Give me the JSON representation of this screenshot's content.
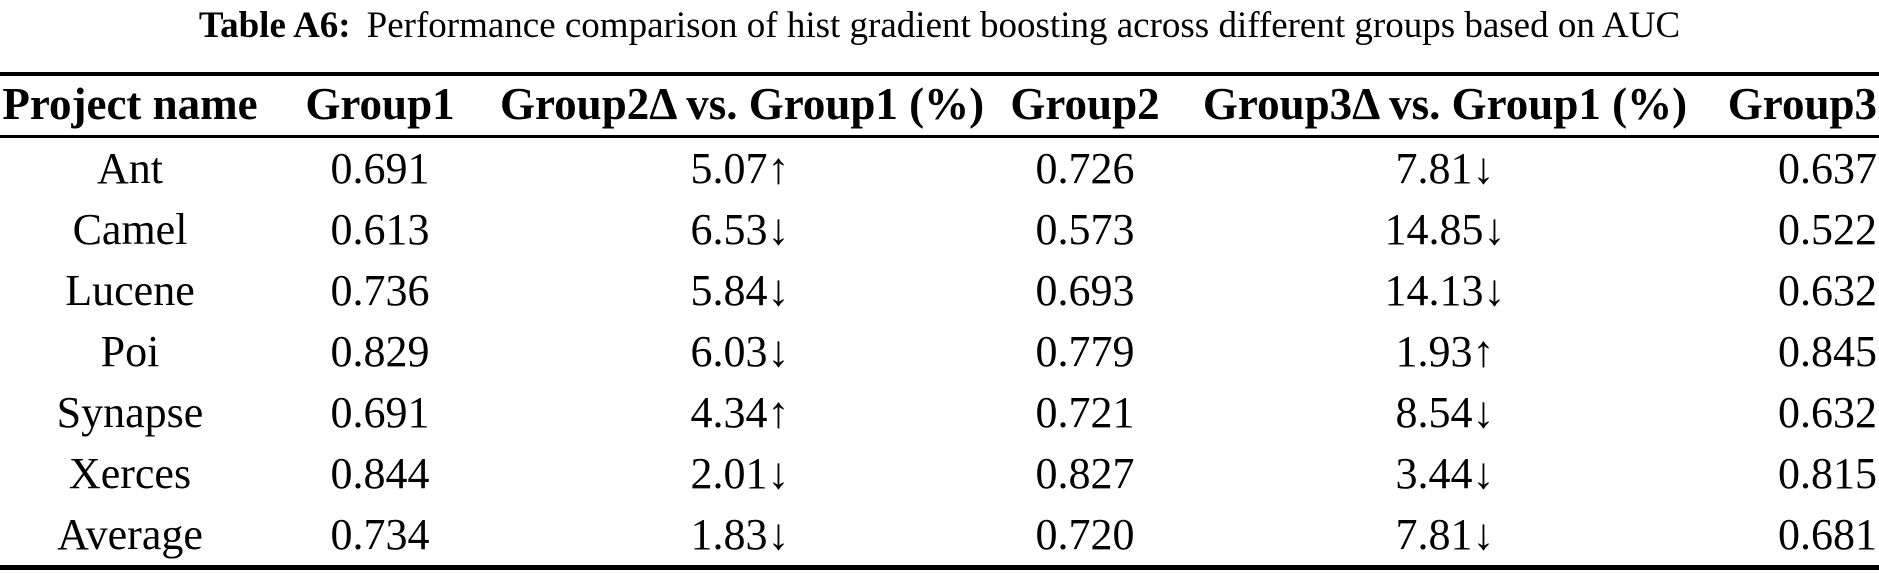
{
  "caption": {
    "label": "Table A6:",
    "text": "Performance comparison of hist gradient boosting across different groups based on AUC"
  },
  "table": {
    "columns": [
      "Project name",
      "Group1",
      "Group2Δ vs. Group1 (%)",
      "Group2",
      "Group3Δ vs. Group1 (%)",
      "Group3"
    ],
    "column_keys": [
      "project-name",
      "group1-auc",
      "group2-delta-vs-group1-pct",
      "group2-auc",
      "group3-delta-vs-group1-pct",
      "group3-auc"
    ],
    "rows": [
      [
        "Ant",
        "0.691",
        "5.07↑",
        "0.726",
        "7.81↓",
        "0.637"
      ],
      [
        "Camel",
        "0.613",
        "6.53↓",
        "0.573",
        "14.85↓",
        "0.522"
      ],
      [
        "Lucene",
        "0.736",
        "5.84↓",
        "0.693",
        "14.13↓",
        "0.632"
      ],
      [
        "Poi",
        "0.829",
        "6.03↓",
        "0.779",
        "1.93↑",
        "0.845"
      ],
      [
        "Synapse",
        "0.691",
        "4.34↑",
        "0.721",
        "8.54↓",
        "0.632"
      ],
      [
        "Xerces",
        "0.844",
        "2.01↓",
        "0.827",
        "3.44↓",
        "0.815"
      ],
      [
        "Average",
        "0.734",
        "1.83↓",
        "0.720",
        "7.81↓",
        "0.681"
      ]
    ]
  },
  "colors": {
    "text": "#000000",
    "background": "#ffffff",
    "rule": "#000000"
  }
}
